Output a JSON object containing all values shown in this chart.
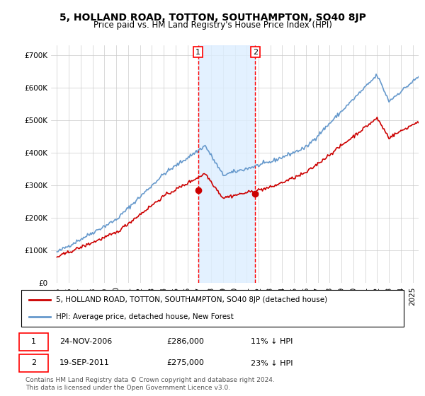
{
  "title": "5, HOLLAND ROAD, TOTTON, SOUTHAMPTON, SO40 8JP",
  "subtitle": "Price paid vs. HM Land Registry's House Price Index (HPI)",
  "ylim": [
    0,
    730000
  ],
  "yticks": [
    0,
    100000,
    200000,
    300000,
    400000,
    500000,
    600000,
    700000
  ],
  "sale1": {
    "date_label": "24-NOV-2006",
    "price": 286000,
    "pct": "11%",
    "dir": "↓",
    "year": 2006.9
  },
  "sale2": {
    "date_label": "19-SEP-2011",
    "price": 275000,
    "pct": "23%",
    "dir": "↓",
    "year": 2011.72
  },
  "legend_line1": "5, HOLLAND ROAD, TOTTON, SOUTHAMPTON, SO40 8JP (detached house)",
  "legend_line2": "HPI: Average price, detached house, New Forest",
  "footer": "Contains HM Land Registry data © Crown copyright and database right 2024.\nThis data is licensed under the Open Government Licence v3.0.",
  "line_color_red": "#cc0000",
  "line_color_blue": "#6699cc",
  "shade_color": "#ddeeff",
  "marker_color_red": "#cc0000",
  "background_color": "#ffffff",
  "grid_color": "#cccccc"
}
